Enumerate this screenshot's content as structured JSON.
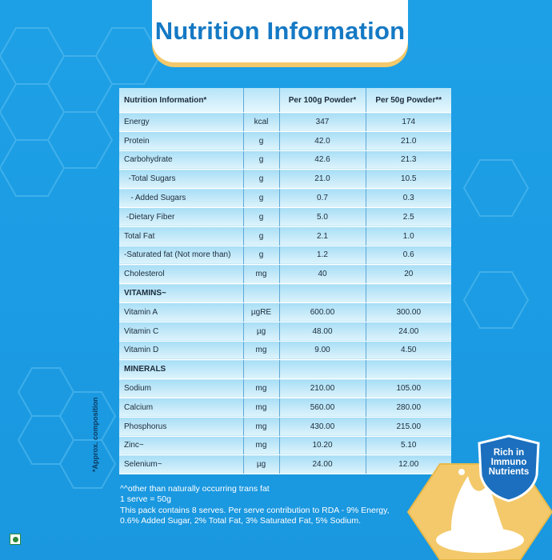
{
  "title": "Nutrition Information",
  "table": {
    "headers": [
      "Nutrition Information*",
      "",
      "Per 100g Powder*",
      "Per 50g Powder**"
    ],
    "rows": [
      {
        "name": "Energy",
        "unit": "kcal",
        "per100": "347",
        "per50": "174"
      },
      {
        "name": "Protein",
        "unit": "g",
        "per100": "42.0",
        "per50": "21.0"
      },
      {
        "name": "Carbohydrate",
        "unit": "g",
        "per100": "42.6",
        "per50": "21.3"
      },
      {
        "name": "  -Total Sugars",
        "unit": "g",
        "per100": "21.0",
        "per50": "10.5"
      },
      {
        "name": "   - Added Sugars",
        "unit": "g",
        "per100": "0.7",
        "per50": "0.3"
      },
      {
        "name": " -Dietary Fiber",
        "unit": "g",
        "per100": "5.0",
        "per50": "2.5"
      },
      {
        "name": "Total Fat",
        "unit": "g",
        "per100": "2.1",
        "per50": "1.0"
      },
      {
        "name": "-Saturated fat (Not more than)",
        "unit": "g",
        "per100": "1.2",
        "per50": "0.6"
      },
      {
        "name": "Cholesterol",
        "unit": "mg",
        "per100": "40",
        "per50": "20"
      },
      {
        "name": "VITAMINS~",
        "unit": "",
        "per100": "",
        "per50": "",
        "section": true
      },
      {
        "name": "Vitamin A",
        "unit": "µgRE",
        "per100": "600.00",
        "per50": "300.00"
      },
      {
        "name": "Vitamin C",
        "unit": "µg",
        "per100": "48.00",
        "per50": "24.00"
      },
      {
        "name": "Vitamin D",
        "unit": "mg",
        "per100": "9.00",
        "per50": "4.50"
      },
      {
        "name": "MINERALS",
        "unit": "",
        "per100": "",
        "per50": "",
        "section": true
      },
      {
        "name": "Sodium",
        "unit": "mg",
        "per100": "210.00",
        "per50": "105.00"
      },
      {
        "name": "Calcium",
        "unit": "mg",
        "per100": "560.00",
        "per50": "280.00"
      },
      {
        "name": "Phosphorus",
        "unit": "mg",
        "per100": "430.00",
        "per50": "215.00"
      },
      {
        "name": "Zinc~",
        "unit": "mg",
        "per100": "10.20",
        "per50": "5.10"
      },
      {
        "name": "Selenium~",
        "unit": "µg",
        "per100": "24.00",
        "per50": "12.00"
      }
    ]
  },
  "side_label": "*Approx. composition",
  "notes": [
    "^^other than naturally occurring trans fat",
    "1 serve = 50g",
    "This pack contains 8 serves. Per serve contribution to RDA - 9% Energy,",
    "0.6% Added Sugar, 2% Total Fat, 3% Saturated Fat, 5% Sodium."
  ],
  "badge": {
    "line1": "Rich in",
    "line2": "Immuno",
    "line3": "Nutrients"
  },
  "colors": {
    "background": "#1ea0e6",
    "title": "#1579c4",
    "accent": "#f3c96b",
    "table": "#c9ecfb",
    "veg": "#2a8a3a"
  },
  "icons": {
    "veg_mark": "veg-symbol-icon",
    "badge": "shield-badge-icon",
    "milk": "milk-splash-icon"
  }
}
